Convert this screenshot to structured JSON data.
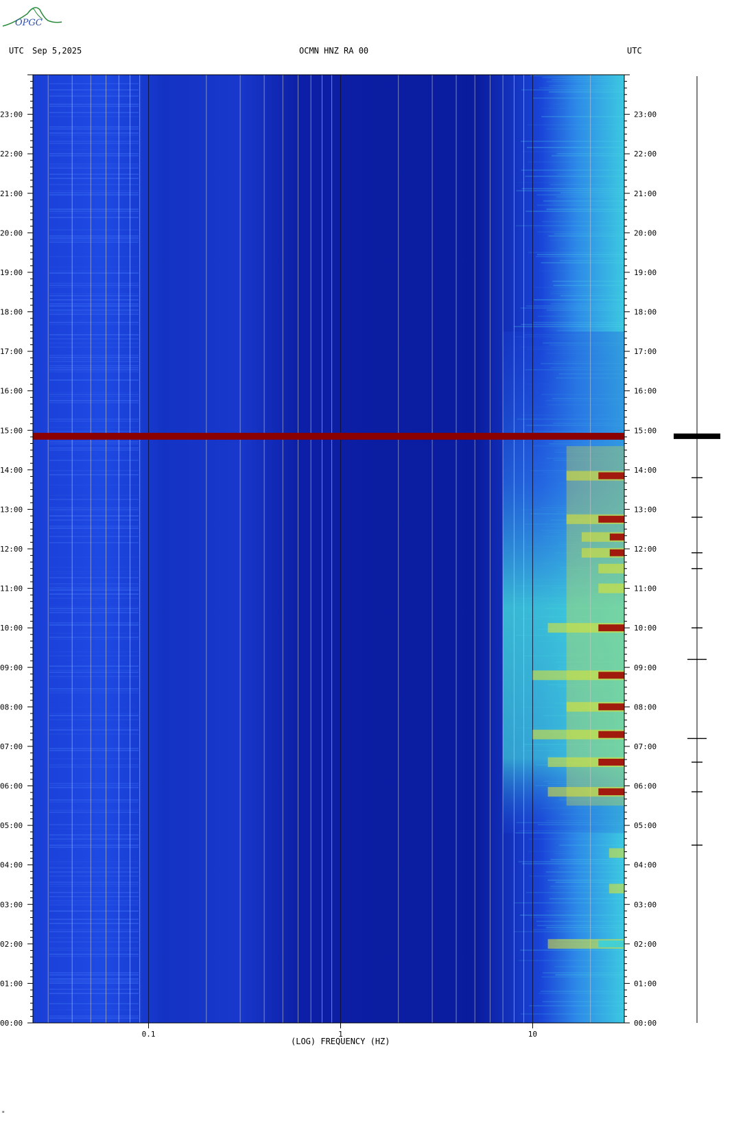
{
  "header": {
    "left_tz": "UTC",
    "date": "Sep 5,2025",
    "station": "OCMN HNZ RA 00",
    "right_tz": "UTC"
  },
  "logo": {
    "text": "OPGC",
    "color": "#2a8a3a"
  },
  "footer_mark": "\"",
  "colors": {
    "background_low": "#0a1fa8",
    "mid": "#1f4fe0",
    "cyan": "#33d6e0",
    "yellow": "#e6e62a",
    "red": "#8b0000",
    "grid": "#c8c8c8"
  },
  "chart_data": {
    "type": "heatmap",
    "title": "OCMN HNZ RA 00",
    "xlabel": "(LOG) FREQUENCY (HZ)",
    "x_scale": "log",
    "xlim": [
      0.025,
      30
    ],
    "x_ticks": [
      {
        "value": 0.1,
        "label": "0.1"
      },
      {
        "value": 1,
        "label": "1"
      },
      {
        "value": 10,
        "label": "10"
      }
    ],
    "x_grid": [
      0.03,
      0.04,
      0.05,
      0.06,
      0.07,
      0.08,
      0.09,
      0.1,
      0.2,
      0.3,
      0.4,
      0.5,
      0.6,
      0.7,
      0.8,
      0.9,
      1,
      2,
      3,
      4,
      5,
      6,
      7,
      8,
      9,
      10,
      20
    ],
    "ylim": [
      0,
      24
    ],
    "y_ticks": [
      {
        "value": 0,
        "label": "00:00"
      },
      {
        "value": 1,
        "label": "01:00"
      },
      {
        "value": 2,
        "label": "02:00"
      },
      {
        "value": 3,
        "label": "03:00"
      },
      {
        "value": 4,
        "label": "04:00"
      },
      {
        "value": 5,
        "label": "05:00"
      },
      {
        "value": 6,
        "label": "06:00"
      },
      {
        "value": 7,
        "label": "07:00"
      },
      {
        "value": 8,
        "label": "08:00"
      },
      {
        "value": 9,
        "label": "09:00"
      },
      {
        "value": 10,
        "label": "10:00"
      },
      {
        "value": 11,
        "label": "11:00"
      },
      {
        "value": 12,
        "label": "12:00"
      },
      {
        "value": 13,
        "label": "13:00"
      },
      {
        "value": 14,
        "label": "14:00"
      },
      {
        "value": 15,
        "label": "15:00"
      },
      {
        "value": 16,
        "label": "16:00"
      },
      {
        "value": 17,
        "label": "17:00"
      },
      {
        "value": 18,
        "label": "18:00"
      },
      {
        "value": 19,
        "label": "19:00"
      },
      {
        "value": 20,
        "label": "20:00"
      },
      {
        "value": 21,
        "label": "21:00"
      },
      {
        "value": 22,
        "label": "22:00"
      },
      {
        "value": 23,
        "label": "23:00"
      }
    ],
    "events": [
      {
        "time_h": 14.85,
        "fmin": 0.025,
        "fmax": 30,
        "level": "saturated"
      },
      {
        "time_h": 13.85,
        "fmin": 15,
        "fmax": 30,
        "level": "high"
      },
      {
        "time_h": 12.75,
        "fmin": 15,
        "fmax": 30,
        "level": "high"
      },
      {
        "time_h": 12.3,
        "fmin": 18,
        "fmax": 30,
        "level": "high"
      },
      {
        "time_h": 11.9,
        "fmin": 18,
        "fmax": 30,
        "level": "high"
      },
      {
        "time_h": 11.5,
        "fmin": 22,
        "fmax": 30,
        "level": "high"
      },
      {
        "time_h": 11.0,
        "fmin": 22,
        "fmax": 30,
        "level": "high"
      },
      {
        "time_h": 10.0,
        "fmin": 12,
        "fmax": 30,
        "level": "high"
      },
      {
        "time_h": 8.8,
        "fmin": 10,
        "fmax": 30,
        "level": "high"
      },
      {
        "time_h": 8.0,
        "fmin": 15,
        "fmax": 30,
        "level": "high"
      },
      {
        "time_h": 7.3,
        "fmin": 10,
        "fmax": 30,
        "level": "high"
      },
      {
        "time_h": 6.6,
        "fmin": 12,
        "fmax": 30,
        "level": "high"
      },
      {
        "time_h": 5.85,
        "fmin": 12,
        "fmax": 30,
        "level": "high"
      },
      {
        "time_h": 4.3,
        "fmin": 25,
        "fmax": 30,
        "level": "moderate"
      },
      {
        "time_h": 3.4,
        "fmin": 25,
        "fmax": 30,
        "level": "moderate"
      },
      {
        "time_h": 2.0,
        "fmin": 12,
        "fmax": 30,
        "level": "low"
      }
    ],
    "seismogram_events_h": [
      14.85,
      13.8,
      12.8,
      11.9,
      11.5,
      10.0,
      9.2,
      7.2,
      6.6,
      5.85,
      4.5
    ]
  }
}
